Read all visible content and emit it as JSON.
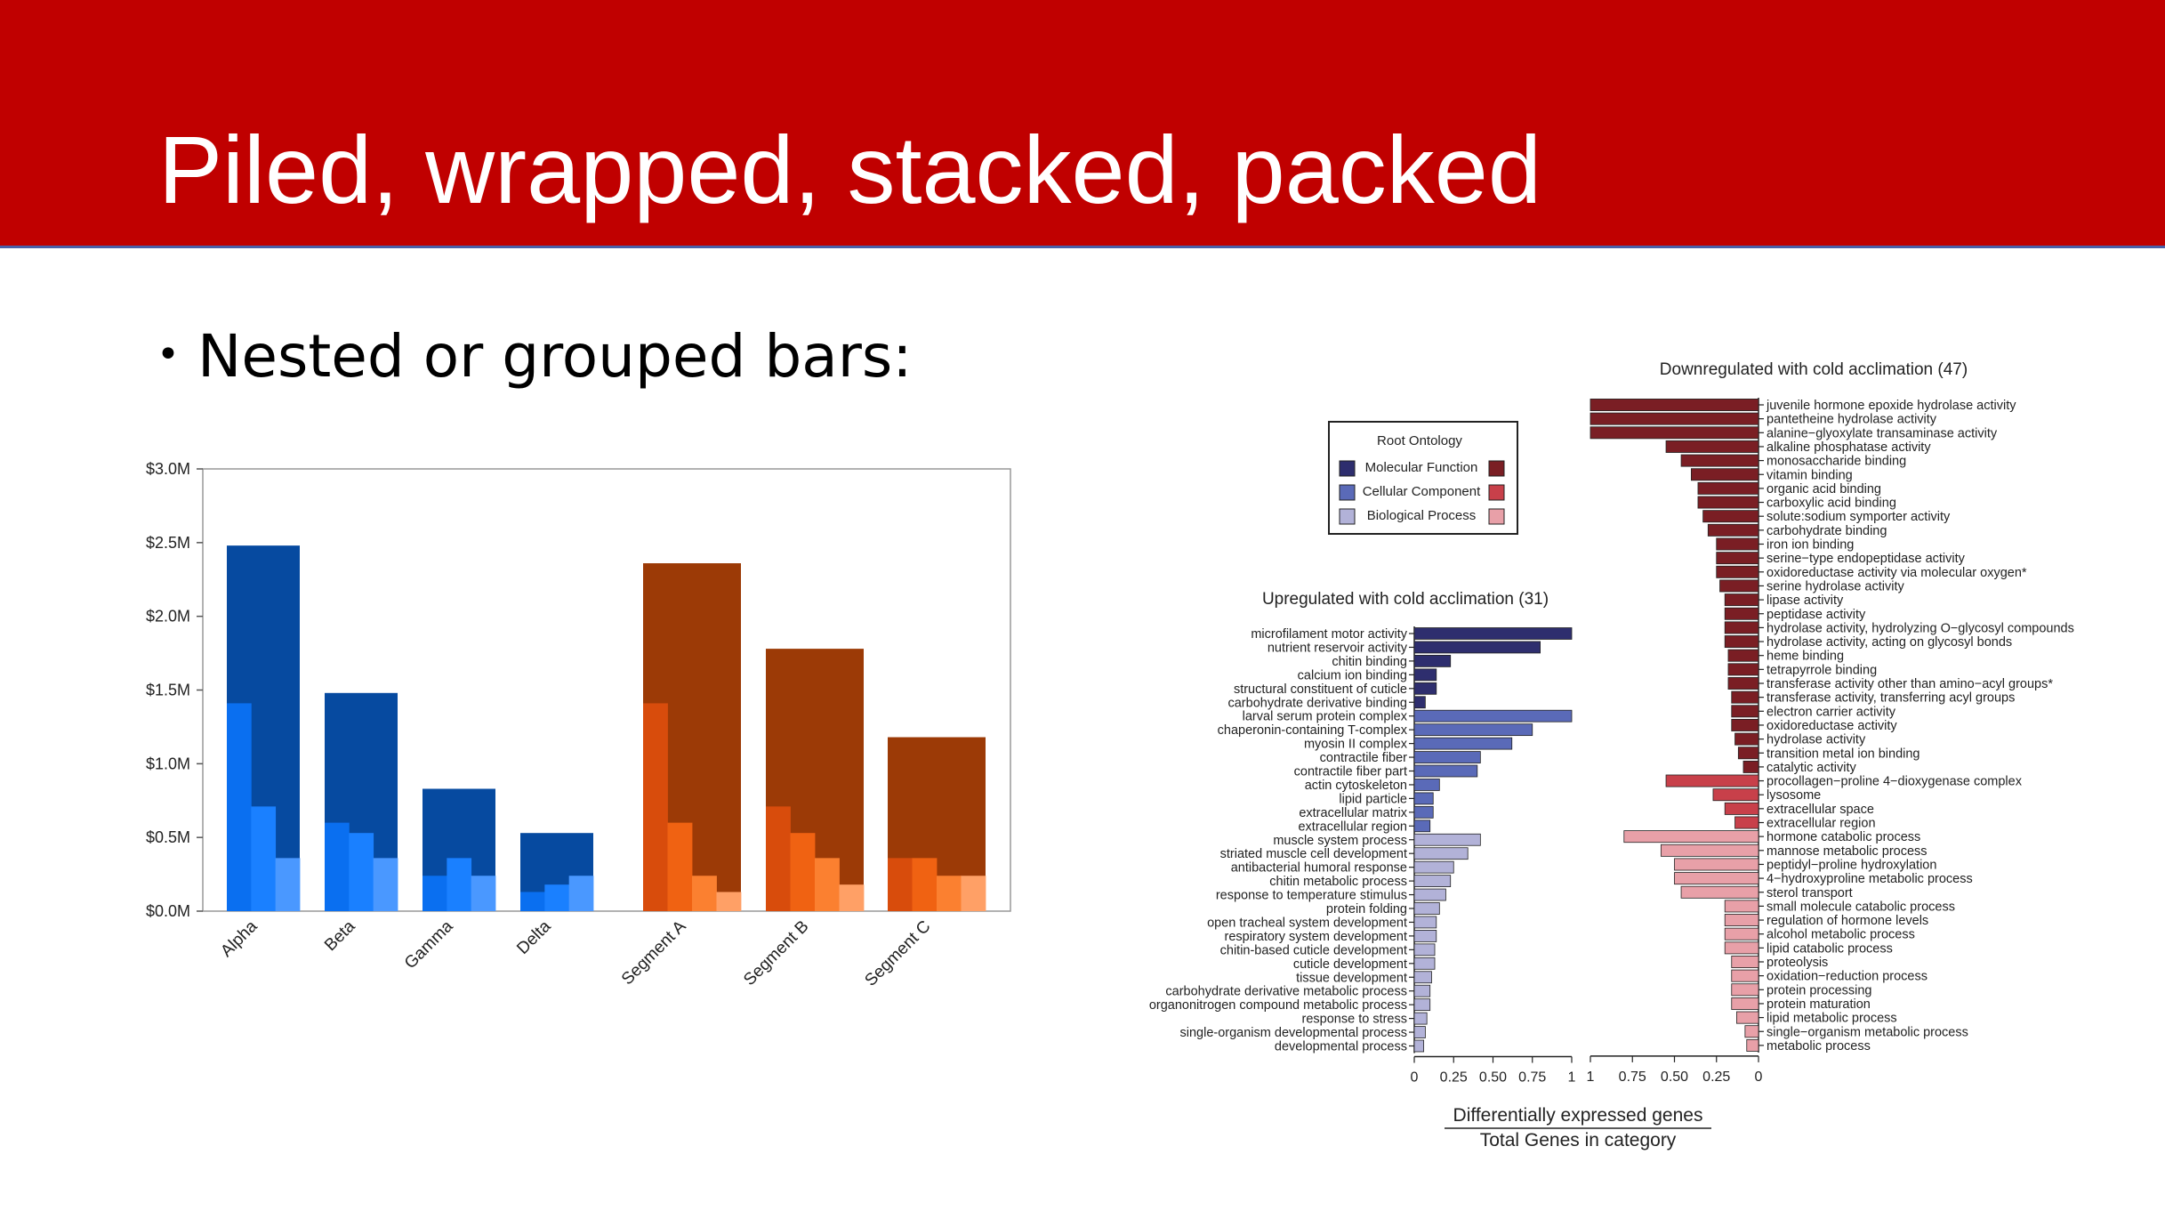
{
  "slide": {
    "title": "Piled, wrapped, stacked, packed",
    "bullet": "Nested or grouped bars:",
    "colors": {
      "banner": "#c00000",
      "title_text": "#ffffff"
    }
  },
  "chart_data": [
    {
      "type": "bar",
      "title": "",
      "categories": [
        "Alpha",
        "Beta",
        "Gamma",
        "Delta",
        "Segment A",
        "Segment B",
        "Segment C"
      ],
      "yticks": [
        "$0.0M",
        "$0.5M",
        "$1.0M",
        "$1.5M",
        "$2.0M",
        "$2.5M",
        "$3.0M"
      ],
      "ylim": [
        0,
        3.0
      ],
      "grid": false,
      "outer_values": [
        2.48,
        1.48,
        0.83,
        0.53,
        2.36,
        1.78,
        1.18
      ],
      "inner_values": [
        [
          1.41,
          0.71,
          0.36
        ],
        [
          0.6,
          0.53,
          0.36
        ],
        [
          0.24,
          0.36,
          0.24
        ],
        [
          0.13,
          0.18,
          0.24
        ],
        [
          1.41,
          0.6,
          0.24,
          0.13
        ],
        [
          0.71,
          0.53,
          0.36,
          0.18
        ],
        [
          0.36,
          0.36,
          0.24,
          0.24
        ]
      ],
      "colors": {
        "blue_outer": "#064aa0",
        "blue_inner": [
          "#0a6ff0",
          "#1a80ff",
          "#4a98ff"
        ],
        "orange_outer": "#9c3a06",
        "orange_inner": [
          "#d84c0c",
          "#f06212",
          "#fb8030",
          "#ffa066"
        ]
      }
    },
    {
      "type": "bar",
      "orientation": "horizontal",
      "legend": {
        "title": "Root Ontology",
        "entries": [
          "Molecular Function",
          "Cellular Component",
          "Biological Process"
        ],
        "placement": "top-left",
        "colors_up": [
          "#2e2e6e",
          "#5a6ab8",
          "#b2b2d8"
        ],
        "colors_down": [
          "#7a1e24",
          "#c8404a",
          "#e8a0a8"
        ]
      },
      "xlabel_numerator": "Differentially expressed genes",
      "xlabel_denominator": "Total Genes in category",
      "upregulated": {
        "title": "Upregulated with cold acclimation (31)",
        "xticks": [
          "0",
          "0.25",
          "0.50",
          "0.75",
          "1"
        ],
        "xlim": [
          0,
          1
        ],
        "series": [
          {
            "name": "Molecular Function",
            "labels": [
              "microfilament motor activity",
              "nutrient reservoir activity",
              "chitin binding",
              "calcium ion binding",
              "structural constituent of cuticle",
              "carbohydrate derivative binding"
            ],
            "values": [
              1.0,
              0.8,
              0.23,
              0.14,
              0.14,
              0.07
            ]
          },
          {
            "name": "Cellular Component",
            "labels": [
              "larval serum protein complex",
              "chaperonin-containing T-complex",
              "myosin II complex",
              "contractile fiber",
              "contractile fiber part",
              "actin cytoskeleton",
              "lipid particle",
              "extracellular matrix",
              "extracellular region"
            ],
            "values": [
              1.0,
              0.75,
              0.62,
              0.42,
              0.4,
              0.16,
              0.12,
              0.12,
              0.1
            ]
          },
          {
            "name": "Biological Process",
            "labels": [
              "muscle system process",
              "striated muscle cell development",
              "antibacterial humoral response",
              "chitin metabolic process",
              "response to temperature stimulus",
              "protein folding",
              "open tracheal system development",
              "respiratory system development",
              "chitin-based cuticle development",
              "cuticle development",
              "tissue development",
              "carbohydrate derivative metabolic process",
              "organonitrogen compound metabolic process",
              "response to stress",
              "single-organism developmental process",
              "developmental process"
            ],
            "values": [
              0.42,
              0.34,
              0.25,
              0.23,
              0.2,
              0.16,
              0.14,
              0.14,
              0.13,
              0.13,
              0.11,
              0.1,
              0.1,
              0.08,
              0.07,
              0.06
            ]
          }
        ]
      },
      "downregulated": {
        "title": "Downregulated with cold acclimation (47)",
        "xticks": [
          "1",
          "0.75",
          "0.50",
          "0.25",
          "0"
        ],
        "xlim": [
          1,
          0
        ],
        "series": [
          {
            "name": "Molecular Function",
            "labels": [
              "juvenile hormone epoxide hydrolase activity",
              "pantetheine hydrolase activity",
              "alanine−glyoxylate transaminase activity",
              "alkaline phosphatase activity",
              "monosaccharide binding",
              "vitamin binding",
              "organic acid binding",
              "carboxylic acid binding",
              "solute:sodium symporter activity",
              "carbohydrate binding",
              "iron ion binding",
              "serine−type endopeptidase activity",
              "oxidoreductase activity via molecular oxygen*",
              "serine hydrolase activity",
              "lipase activity",
              "peptidase activity",
              "hydrolase activity, hydrolyzing O−glycosyl compounds",
              "hydrolase activity, acting on glycosyl bonds",
              "heme binding",
              "tetrapyrrole binding",
              "transferase activity other than amino−acyl groups*",
              "transferase activity, transferring acyl groups",
              "electron carrier activity",
              "oxidoreductase activity",
              "hydrolase activity",
              "transition metal ion binding",
              "catalytic activity"
            ],
            "values": [
              1.0,
              1.0,
              1.0,
              0.55,
              0.46,
              0.4,
              0.36,
              0.36,
              0.33,
              0.3,
              0.25,
              0.25,
              0.25,
              0.23,
              0.2,
              0.2,
              0.2,
              0.2,
              0.18,
              0.18,
              0.18,
              0.16,
              0.16,
              0.16,
              0.14,
              0.12,
              0.09
            ]
          },
          {
            "name": "Cellular Component",
            "labels": [
              "procollagen−proline 4−dioxygenase complex",
              "lysosome",
              "extracellular space",
              "extracellular region"
            ],
            "values": [
              0.55,
              0.27,
              0.2,
              0.14
            ]
          },
          {
            "name": "Biological Process",
            "labels": [
              "hormone catabolic process",
              "mannose metabolic process",
              "peptidyl−proline hydroxylation",
              "4−hydroxyproline metabolic process",
              "sterol transport",
              "small molecule catabolic process",
              "regulation of hormone levels",
              "alcohol metabolic process",
              "lipid catabolic process",
              "proteolysis",
              "oxidation−reduction process",
              "protein processing",
              "protein maturation",
              "lipid metabolic process",
              "single−organism metabolic process",
              "metabolic process"
            ],
            "values": [
              0.8,
              0.58,
              0.5,
              0.5,
              0.46,
              0.2,
              0.2,
              0.2,
              0.2,
              0.16,
              0.16,
              0.16,
              0.16,
              0.13,
              0.08,
              0.07
            ]
          }
        ]
      }
    }
  ]
}
